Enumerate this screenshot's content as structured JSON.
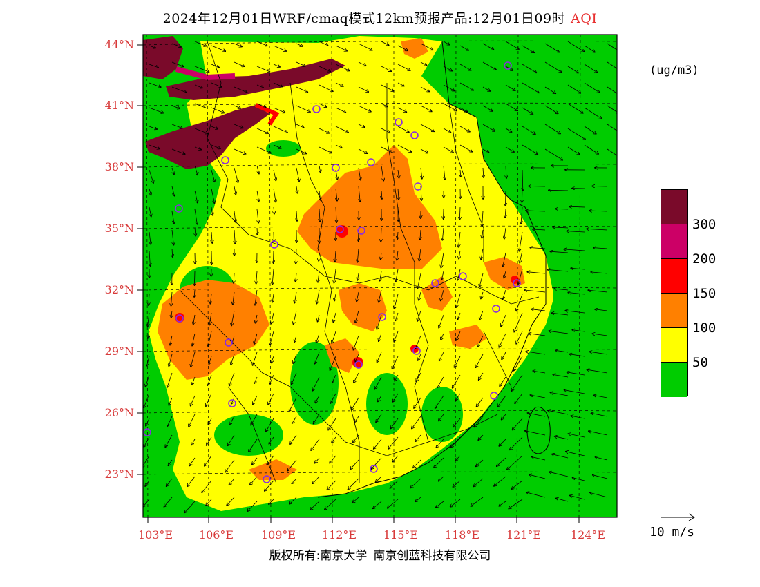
{
  "title": {
    "main": "2024年12月01日WRF/cmaq模式12km预报产品:12月01日09时",
    "product": "AQI"
  },
  "map": {
    "lat_labels": [
      "44°N",
      "41°N",
      "38°N",
      "35°N",
      "32°N",
      "29°N",
      "26°N",
      "23°N"
    ],
    "lon_labels": [
      "103°E",
      "106°E",
      "109°E",
      "112°E",
      "115°E",
      "118°E",
      "121°E",
      "124°E"
    ],
    "colors": {
      "ocean_land_good": "#00cc00",
      "moderate": "#ffff00",
      "usg": "#ff8000",
      "unhealthy": "#ff0000",
      "very_unhealthy": "#cc0066",
      "hazardous": "#800020",
      "label_red": "#d83a3a",
      "city_marker": "#8a2be2"
    }
  },
  "legend": {
    "unit": "(ug/m3)",
    "ticks": [
      "300",
      "200",
      "150",
      "100",
      "50"
    ],
    "swatches": [
      "#7a0a2a",
      "#cc0066",
      "#ff0000",
      "#ff8000",
      "#ffff00",
      "#00cc00"
    ]
  },
  "wind": {
    "reference_label": "10 m/s"
  },
  "footer": {
    "left": "版权所有:南京大学",
    "right": "南京创蓝科技有限公司"
  }
}
